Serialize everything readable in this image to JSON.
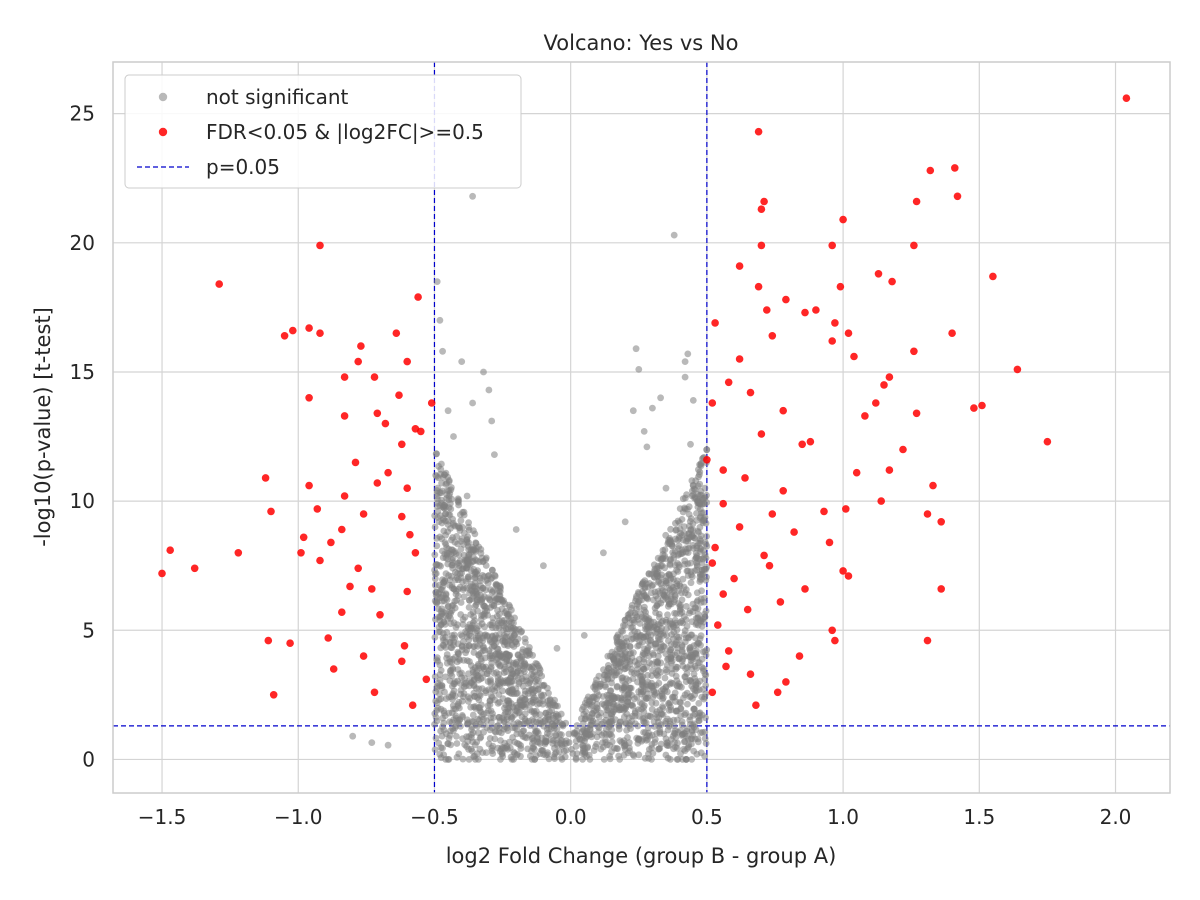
{
  "chart_data": {
    "type": "scatter",
    "title": "Volcano: Yes vs No",
    "xlabel": "log2 Fold Change (group B - group A)",
    "ylabel": "-log10(p-value) [t-test]",
    "xlim": [
      -1.68,
      2.2
    ],
    "ylim": [
      -1.3,
      27.0
    ],
    "xticks": [
      -1.5,
      -1.0,
      -0.5,
      0.0,
      0.5,
      1.0,
      1.5,
      2.0
    ],
    "xtick_labels": [
      "−1.5",
      "−1.0",
      "−0.5",
      "0.0",
      "0.5",
      "1.0",
      "1.5",
      "2.0"
    ],
    "yticks": [
      0,
      5,
      10,
      15,
      20,
      25
    ],
    "ytick_labels": [
      "0",
      "5",
      "10",
      "15",
      "20",
      "25"
    ],
    "grid": true,
    "legend_position": "top-left",
    "colors": {
      "not_significant": "#808080",
      "significant": "#ff0000",
      "threshold": "#0000cc"
    },
    "legend": [
      {
        "label": "not significant",
        "marker": "dot",
        "color": "#808080"
      },
      {
        "label": "FDR<0.05 & |log2FC|>=0.5",
        "marker": "dot",
        "color": "#ff0000"
      },
      {
        "label": "p=0.05",
        "marker": "dashed-line",
        "color": "#0000cc"
      }
    ],
    "thresholds": {
      "x": [
        -0.5,
        0.5
      ],
      "y": 1.3
    },
    "series": [
      {
        "name": "not significant",
        "color": "#808080",
        "points": [
          [
            -0.36,
            21.8
          ],
          [
            0.38,
            20.3
          ],
          [
            -0.49,
            18.5
          ],
          [
            -0.48,
            17.0
          ],
          [
            -0.47,
            15.8
          ],
          [
            -0.4,
            15.4
          ],
          [
            0.24,
            15.9
          ],
          [
            0.25,
            15.1
          ],
          [
            0.43,
            15.7
          ],
          [
            0.42,
            15.4
          ],
          [
            -0.32,
            15.0
          ],
          [
            -0.3,
            14.3
          ],
          [
            0.42,
            14.8
          ],
          [
            0.33,
            14.0
          ],
          [
            -0.45,
            13.5
          ],
          [
            0.23,
            13.5
          ],
          [
            0.3,
            13.6
          ],
          [
            -0.36,
            13.8
          ],
          [
            0.45,
            13.9
          ],
          [
            -0.29,
            13.1
          ],
          [
            0.27,
            12.7
          ],
          [
            -0.43,
            12.5
          ],
          [
            0.44,
            12.2
          ],
          [
            -0.8,
            0.9
          ],
          [
            -0.73,
            0.65
          ],
          [
            -0.67,
            0.55
          ],
          [
            -0.47,
            1.6
          ],
          [
            0.47,
            1.5
          ],
          [
            0.42,
            0.7
          ],
          [
            0.35,
            0.8
          ],
          [
            -0.3,
            0.6
          ],
          [
            0.15,
            0.3
          ],
          [
            -0.1,
            0.2
          ],
          [
            0.02,
            0.05
          ],
          [
            -0.02,
            0.1
          ],
          [
            -0.1,
            7.5
          ],
          [
            0.12,
            8.0
          ],
          [
            -0.05,
            4.3
          ],
          [
            0.05,
            4.8
          ],
          [
            -0.2,
            8.9
          ],
          [
            0.2,
            9.2
          ],
          [
            -0.28,
            11.8
          ],
          [
            0.28,
            12.1
          ],
          [
            0.35,
            10.5
          ],
          [
            -0.38,
            10.2
          ]
        ]
      },
      {
        "name": "FDR<0.05 & |log2FC|>=0.5",
        "color": "#ff0000",
        "points": [
          [
            2.04,
            25.6
          ],
          [
            0.69,
            24.3
          ],
          [
            1.41,
            22.9
          ],
          [
            1.32,
            22.8
          ],
          [
            1.42,
            21.8
          ],
          [
            1.27,
            21.6
          ],
          [
            0.71,
            21.6
          ],
          [
            0.7,
            21.3
          ],
          [
            1.0,
            20.9
          ],
          [
            -0.92,
            19.9
          ],
          [
            0.7,
            19.9
          ],
          [
            0.96,
            19.9
          ],
          [
            1.26,
            19.9
          ],
          [
            0.62,
            19.1
          ],
          [
            1.13,
            18.8
          ],
          [
            1.18,
            18.5
          ],
          [
            1.55,
            18.7
          ],
          [
            -1.29,
            18.4
          ],
          [
            0.69,
            18.3
          ],
          [
            0.99,
            18.3
          ],
          [
            -0.56,
            17.9
          ],
          [
            0.79,
            17.8
          ],
          [
            0.86,
            17.3
          ],
          [
            0.72,
            17.4
          ],
          [
            0.9,
            17.4
          ],
          [
            0.53,
            16.9
          ],
          [
            0.97,
            16.9
          ],
          [
            1.02,
            16.5
          ],
          [
            -0.96,
            16.7
          ],
          [
            -0.92,
            16.5
          ],
          [
            -1.02,
            16.6
          ],
          [
            -1.05,
            16.4
          ],
          [
            1.4,
            16.5
          ],
          [
            -0.64,
            16.5
          ],
          [
            0.74,
            16.4
          ],
          [
            0.96,
            16.2
          ],
          [
            -0.77,
            16.0
          ],
          [
            1.04,
            15.6
          ],
          [
            0.62,
            15.5
          ],
          [
            1.26,
            15.8
          ],
          [
            -0.6,
            15.4
          ],
          [
            -0.78,
            15.4
          ],
          [
            1.64,
            15.1
          ],
          [
            -0.83,
            14.8
          ],
          [
            -0.72,
            14.8
          ],
          [
            1.17,
            14.8
          ],
          [
            1.15,
            14.5
          ],
          [
            0.58,
            14.6
          ],
          [
            0.66,
            14.2
          ],
          [
            -0.63,
            14.1
          ],
          [
            1.12,
            13.8
          ],
          [
            -0.96,
            14.0
          ],
          [
            -0.51,
            13.8
          ],
          [
            1.08,
            13.3
          ],
          [
            1.27,
            13.4
          ],
          [
            0.52,
            13.8
          ],
          [
            1.48,
            13.6
          ],
          [
            1.51,
            13.7
          ],
          [
            -0.83,
            13.3
          ],
          [
            -0.71,
            13.4
          ],
          [
            0.78,
            13.5
          ],
          [
            -0.68,
            13.0
          ],
          [
            -0.57,
            12.8
          ],
          [
            -0.55,
            12.7
          ],
          [
            1.75,
            12.3
          ],
          [
            0.7,
            12.6
          ],
          [
            0.85,
            12.2
          ],
          [
            -0.62,
            12.2
          ],
          [
            0.88,
            12.3
          ],
          [
            1.22,
            12.0
          ],
          [
            -0.79,
            11.5
          ],
          [
            0.5,
            11.6
          ],
          [
            0.56,
            11.2
          ],
          [
            -0.67,
            11.1
          ],
          [
            1.05,
            11.1
          ],
          [
            -1.12,
            10.9
          ],
          [
            1.17,
            11.2
          ],
          [
            0.64,
            10.9
          ],
          [
            -0.96,
            10.6
          ],
          [
            -0.71,
            10.7
          ],
          [
            1.33,
            10.6
          ],
          [
            0.78,
            10.4
          ],
          [
            1.14,
            10.0
          ],
          [
            -0.83,
            10.2
          ],
          [
            -0.6,
            10.5
          ],
          [
            -1.1,
            9.6
          ],
          [
            -0.93,
            9.7
          ],
          [
            0.56,
            9.9
          ],
          [
            0.74,
            9.5
          ],
          [
            0.93,
            9.6
          ],
          [
            1.01,
            9.7
          ],
          [
            -0.76,
            9.5
          ],
          [
            1.31,
            9.5
          ],
          [
            1.36,
            9.2
          ],
          [
            -0.62,
            9.4
          ],
          [
            -0.84,
            8.9
          ],
          [
            0.62,
            9.0
          ],
          [
            0.82,
            8.8
          ],
          [
            -0.59,
            8.7
          ],
          [
            -0.98,
            8.6
          ],
          [
            -0.88,
            8.4
          ],
          [
            0.95,
            8.4
          ],
          [
            -1.47,
            8.1
          ],
          [
            -1.22,
            8.0
          ],
          [
            -0.99,
            8.0
          ],
          [
            -0.57,
            8.0
          ],
          [
            0.53,
            8.2
          ],
          [
            0.71,
            7.9
          ],
          [
            -1.38,
            7.4
          ],
          [
            -0.92,
            7.7
          ],
          [
            -0.78,
            7.4
          ],
          [
            0.52,
            7.6
          ],
          [
            0.73,
            7.5
          ],
          [
            1.0,
            7.3
          ],
          [
            1.02,
            7.1
          ],
          [
            -1.5,
            7.2
          ],
          [
            0.6,
            7.0
          ],
          [
            -0.81,
            6.7
          ],
          [
            -0.73,
            6.6
          ],
          [
            0.86,
            6.6
          ],
          [
            1.36,
            6.6
          ],
          [
            -0.6,
            6.5
          ],
          [
            0.56,
            6.4
          ],
          [
            0.77,
            6.1
          ],
          [
            -0.84,
            5.7
          ],
          [
            0.65,
            5.8
          ],
          [
            -0.7,
            5.6
          ],
          [
            0.96,
            5.0
          ],
          [
            0.54,
            5.2
          ],
          [
            -0.89,
            4.7
          ],
          [
            1.31,
            4.6
          ],
          [
            -1.11,
            4.6
          ],
          [
            -1.03,
            4.5
          ],
          [
            0.97,
            4.6
          ],
          [
            -0.61,
            4.4
          ],
          [
            0.58,
            4.2
          ],
          [
            -0.76,
            4.0
          ],
          [
            0.84,
            4.0
          ],
          [
            -0.62,
            3.8
          ],
          [
            0.57,
            3.6
          ],
          [
            -0.87,
            3.5
          ],
          [
            0.66,
            3.3
          ],
          [
            -0.53,
            3.1
          ],
          [
            0.79,
            3.0
          ],
          [
            -0.72,
            2.6
          ],
          [
            -1.09,
            2.5
          ],
          [
            0.76,
            2.6
          ],
          [
            0.52,
            2.6
          ],
          [
            -0.58,
            2.1
          ],
          [
            0.68,
            2.1
          ]
        ]
      }
    ]
  }
}
